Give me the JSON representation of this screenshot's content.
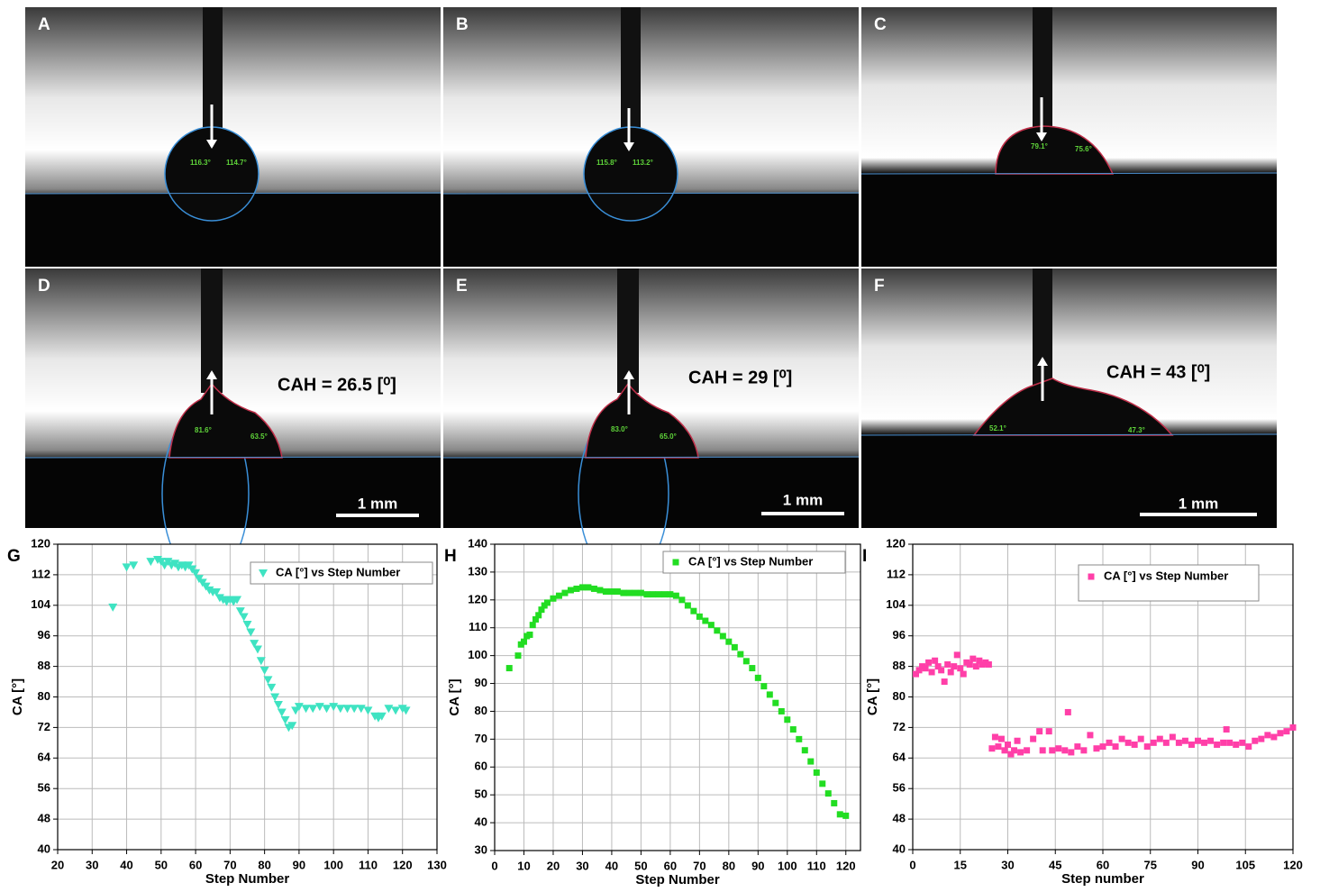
{
  "panels": [
    {
      "label": "A",
      "angles": [
        "116.3°",
        "114.7°"
      ]
    },
    {
      "label": "B",
      "angles": [
        "115.8°",
        "113.2°"
      ]
    },
    {
      "label": "C",
      "angles": [
        "79.1°",
        "75.6°"
      ]
    },
    {
      "label": "D",
      "angles": [
        "81.6°",
        "63.5°"
      ],
      "cah": "CAH = 26.5 [⁰]",
      "scale": "1 mm"
    },
    {
      "label": "E",
      "angles": [
        "83.0°",
        "65.0°"
      ],
      "cah": "CAH = 29 [⁰]",
      "scale": "1 mm"
    },
    {
      "label": "F",
      "angles": [
        "52.1°",
        "47.3°"
      ],
      "cah": "CAH = 43 [⁰]",
      "scale": "1 mm"
    }
  ],
  "chart_data": [
    {
      "type": "scatter",
      "panel_label": "G",
      "xlabel": "Step Number",
      "ylabel": "CA  [°]",
      "xlim": [
        20,
        130
      ],
      "ylim": [
        40,
        120
      ],
      "xticks": [
        20,
        30,
        40,
        50,
        60,
        70,
        80,
        90,
        100,
        110,
        120,
        130
      ],
      "yticks": [
        40,
        48,
        56,
        64,
        72,
        80,
        88,
        96,
        104,
        112,
        120
      ],
      "grid": true,
      "legend": "upper right",
      "series": [
        {
          "name": "CA  [°] vs Step Number",
          "color": "#3fe3c2",
          "marker": "triangle-down",
          "x": [
            36,
            40,
            42,
            47,
            49,
            50,
            51,
            52,
            53,
            54,
            55,
            56,
            57,
            58,
            59,
            60,
            61,
            62,
            63,
            64,
            65,
            66,
            67,
            68,
            69,
            70,
            71,
            72,
            73,
            74,
            75,
            76,
            77,
            78,
            79,
            80,
            81,
            82,
            83,
            84,
            85,
            86,
            87,
            88,
            89,
            90,
            92,
            94,
            96,
            98,
            100,
            102,
            104,
            106,
            108,
            110,
            112,
            113,
            114,
            116,
            118,
            120,
            121
          ],
          "values": [
            103.5,
            114,
            114.5,
            115.5,
            116,
            115.5,
            114.5,
            115.5,
            114.5,
            115,
            114,
            114.5,
            114,
            114.5,
            113.5,
            112.5,
            111,
            110,
            109,
            108,
            107.5,
            107.5,
            106,
            105.5,
            105,
            105.5,
            105,
            105.5,
            102.5,
            101,
            99,
            97,
            94,
            92.5,
            89.5,
            87,
            84.5,
            82.5,
            80,
            78,
            76,
            74,
            72,
            72.5,
            76.5,
            77.5,
            77,
            77,
            77.5,
            77,
            77.5,
            77,
            77,
            77,
            77,
            76.5,
            75,
            74.5,
            75,
            77,
            76.5,
            77,
            76.5
          ]
        }
      ]
    },
    {
      "type": "scatter",
      "panel_label": "H",
      "xlabel": "Step Number",
      "ylabel": "CA  [°]",
      "xlim": [
        0,
        125
      ],
      "ylim": [
        30,
        140
      ],
      "xticks": [
        0,
        10,
        20,
        30,
        40,
        50,
        60,
        70,
        80,
        90,
        100,
        110,
        120
      ],
      "yticks": [
        30,
        40,
        50,
        60,
        70,
        80,
        90,
        100,
        110,
        120,
        130,
        140
      ],
      "grid": true,
      "legend": "upper right",
      "series": [
        {
          "name": "CA  [°] vs Step Number",
          "color": "#22dd22",
          "marker": "square",
          "x": [
            5,
            8,
            9,
            10,
            11,
            12,
            13,
            14,
            15,
            16,
            17,
            18,
            20,
            22,
            24,
            26,
            28,
            30,
            32,
            34,
            36,
            38,
            40,
            42,
            44,
            46,
            48,
            50,
            52,
            54,
            56,
            58,
            60,
            62,
            64,
            66,
            68,
            70,
            72,
            74,
            76,
            78,
            80,
            82,
            84,
            86,
            88,
            90,
            92,
            94,
            96,
            98,
            100,
            102,
            104,
            106,
            108,
            110,
            112,
            114,
            116,
            118,
            120
          ],
          "values": [
            95.5,
            100,
            104,
            105,
            107,
            107.5,
            111,
            113,
            114.5,
            116.5,
            118,
            119,
            120.5,
            121.5,
            122.5,
            123.5,
            124,
            124.5,
            124.5,
            124,
            123.5,
            123,
            123,
            123,
            122.5,
            122.5,
            122.5,
            122.5,
            122,
            122,
            122,
            122,
            122,
            121.5,
            120,
            118,
            116,
            114,
            112.5,
            111,
            109,
            107,
            105,
            103,
            100.5,
            98,
            95.5,
            92,
            89,
            86,
            83,
            80,
            77,
            73.5,
            70,
            66,
            62,
            58,
            54,
            50.5,
            47,
            43,
            42.5
          ]
        }
      ]
    },
    {
      "type": "scatter",
      "panel_label": "I",
      "xlabel": "Step number",
      "ylabel": "CA  [°]",
      "xlim": [
        0,
        120
      ],
      "ylim": [
        40,
        120
      ],
      "xticks": [
        0,
        15,
        30,
        45,
        60,
        75,
        90,
        105,
        120
      ],
      "yticks": [
        40,
        48,
        56,
        64,
        72,
        80,
        88,
        96,
        104,
        112,
        120
      ],
      "grid": true,
      "legend": "upper right",
      "series": [
        {
          "name": "CA  [°] vs Step Number",
          "color": "#ff3fa8",
          "marker": "square",
          "x": [
            1,
            2,
            3,
            4,
            5,
            6,
            7,
            8,
            9,
            10,
            11,
            12,
            13,
            14,
            15,
            16,
            17,
            18,
            19,
            20,
            21,
            22,
            23,
            24,
            25,
            26,
            27,
            28,
            29,
            30,
            31,
            32,
            33,
            34,
            36,
            38,
            40,
            41,
            43,
            44,
            46,
            48,
            49,
            50,
            52,
            54,
            56,
            58,
            60,
            62,
            64,
            66,
            68,
            70,
            72,
            74,
            76,
            78,
            80,
            82,
            84,
            86,
            88,
            90,
            92,
            94,
            96,
            98,
            99,
            100,
            102,
            104,
            106,
            108,
            110,
            112,
            114,
            116,
            118,
            120
          ],
          "values": [
            86,
            87,
            88,
            87.5,
            89,
            86.5,
            89.5,
            88,
            87,
            84,
            88.5,
            86.5,
            88,
            91,
            87.5,
            86,
            89,
            88.5,
            90,
            88,
            89.5,
            88.5,
            89,
            88.5,
            66.5,
            69.5,
            67,
            69,
            66,
            67.5,
            65,
            66,
            68.5,
            65.5,
            66,
            69,
            71,
            66,
            71,
            66,
            66.5,
            66,
            76,
            65.5,
            67,
            66,
            70,
            66.5,
            67,
            68,
            67,
            69,
            68,
            67.5,
            69,
            67,
            68,
            69,
            68,
            69.5,
            68,
            68.5,
            67.5,
            68.5,
            68,
            68.5,
            67.5,
            68,
            71.5,
            68,
            67.5,
            68,
            67,
            68.5,
            69,
            70,
            69.5,
            70.5,
            71,
            72
          ]
        }
      ]
    }
  ]
}
